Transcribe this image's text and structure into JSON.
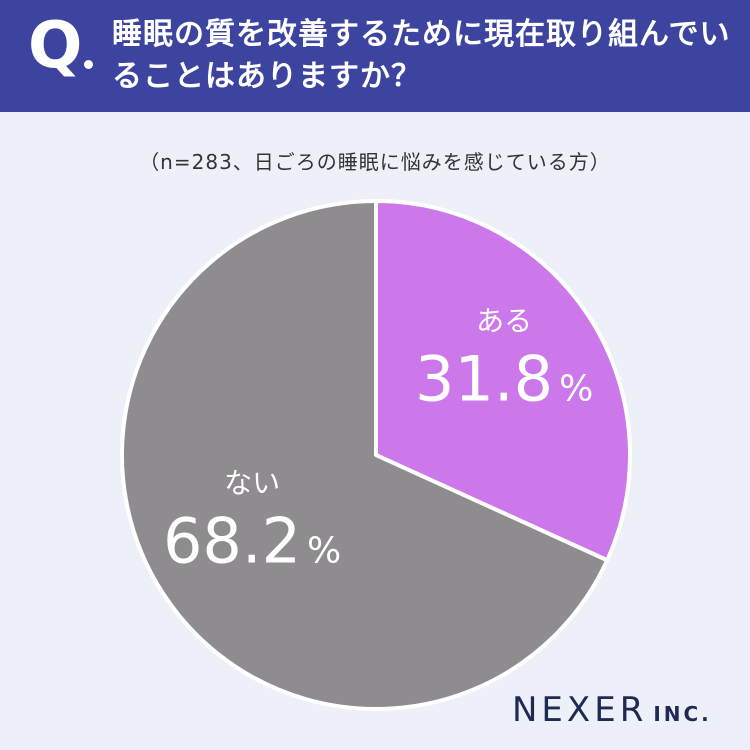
{
  "header": {
    "q_mark": "Q",
    "question": "睡眠の質を改善するために現在取り組んでいることはありますか？"
  },
  "subtitle": "（n=283、日ごろの睡眠に悩みを感じている方）",
  "chart_data": {
    "type": "pie",
    "slices": [
      {
        "label": "ある",
        "value": 31.8,
        "display": "31.8",
        "color": "#cd78ea"
      },
      {
        "label": "ない",
        "value": 68.2,
        "display": "68.2",
        "color": "#8e8c8e"
      }
    ],
    "unit": "%",
    "start": "12 o'clock, clockwise"
  },
  "brand": {
    "name": "NEXER",
    "suffix": "INC."
  }
}
